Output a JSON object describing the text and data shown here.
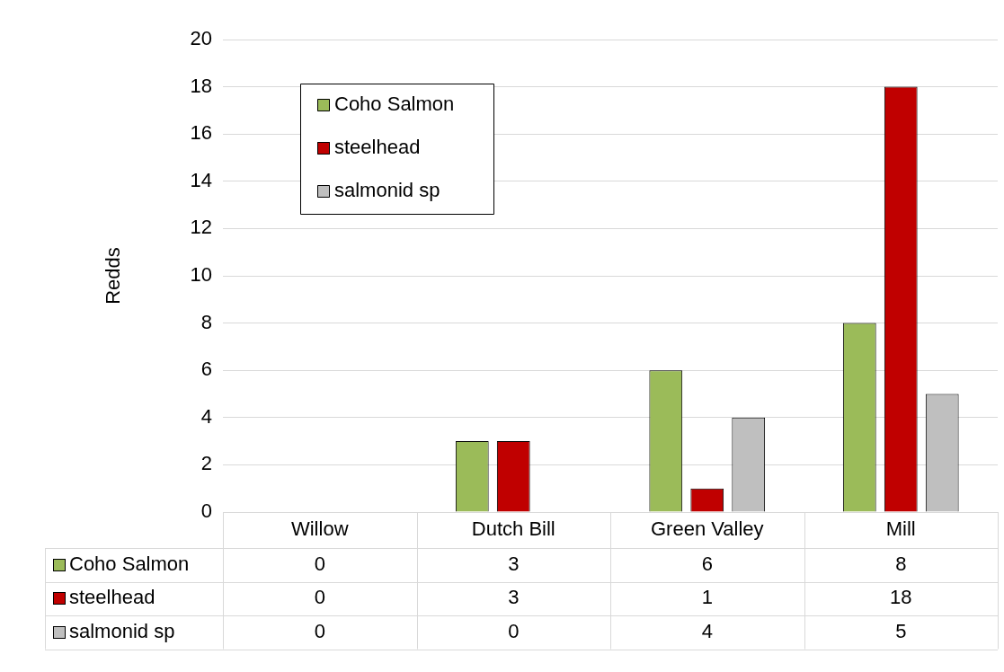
{
  "chart_data": {
    "type": "bar",
    "ylabel": "Redds",
    "categories": [
      "Willow",
      "Dutch Bill",
      "Green Valley",
      "Mill"
    ],
    "series": [
      {
        "name": "Coho Salmon",
        "color": "#9bbb59",
        "values": [
          0,
          3,
          6,
          8
        ]
      },
      {
        "name": "steelhead",
        "color": "#c00000",
        "values": [
          0,
          3,
          1,
          18
        ]
      },
      {
        "name": "salmonid sp",
        "color": "#bfbfbf",
        "values": [
          0,
          0,
          4,
          5
        ]
      }
    ],
    "ylim": [
      0,
      20
    ],
    "yticks": [
      0,
      2,
      4,
      6,
      8,
      10,
      12,
      14,
      16,
      18,
      20
    ],
    "grid": "y",
    "legend": "top left",
    "data_labels": true
  }
}
